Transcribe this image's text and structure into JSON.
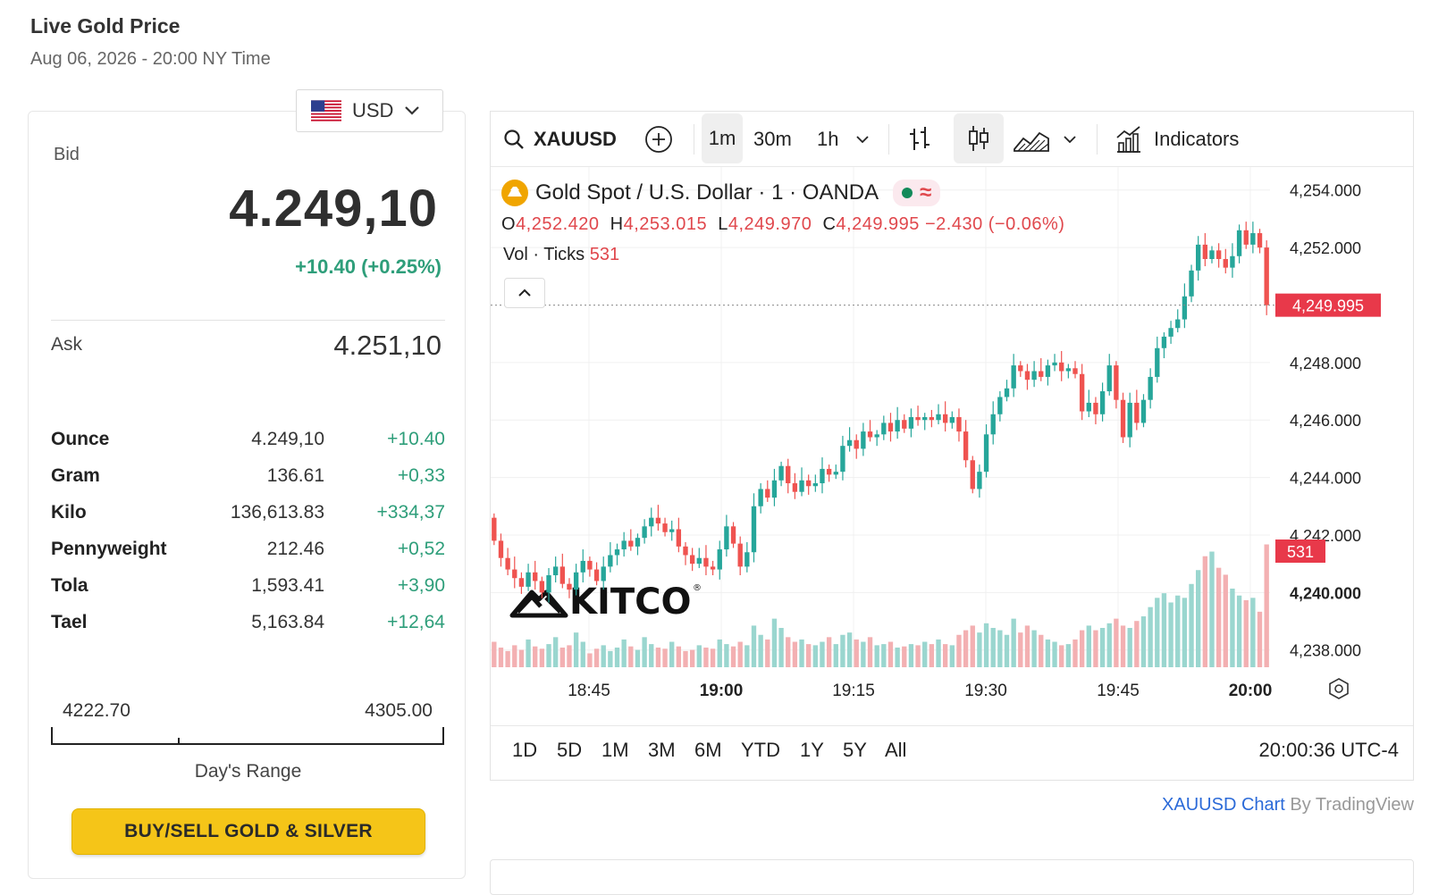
{
  "header": {
    "title": "Live Gold Price",
    "subtitle": "Aug 06, 2026 - 20:00 NY Time"
  },
  "quote": {
    "currency": "USD",
    "bid_label": "Bid",
    "bid": "4.249,10",
    "change": "+10.40 (+0.25%)",
    "ask_label": "Ask",
    "ask": "4.251,10",
    "units": [
      {
        "unit": "Ounce",
        "price": "4.249,10",
        "change": "+10.40"
      },
      {
        "unit": "Gram",
        "price": "136.61",
        "change": "+0,33"
      },
      {
        "unit": "Kilo",
        "price": "136,613.83",
        "change": "+334,37"
      },
      {
        "unit": "Pennyweight",
        "price": "212.46",
        "change": "+0,52"
      },
      {
        "unit": "Tola",
        "price": "1,593.41",
        "change": "+3,90"
      },
      {
        "unit": "Tael",
        "price": "5,163.84",
        "change": "+12,64"
      }
    ],
    "day_range": {
      "low": "4222.70",
      "high": "4305.00",
      "label": "Day's Range",
      "position": 0.32
    },
    "cta": "BUY/SELL GOLD & SILVER"
  },
  "toolbar": {
    "symbol": "XAUUSD",
    "intervals": [
      "1m",
      "30m",
      "1h"
    ],
    "active_interval": "1m",
    "indicators_label": "Indicators",
    "icons": [
      "search-icon",
      "add-symbol-icon",
      "chevron-down-icon",
      "bar-style-icon",
      "candle-style-icon",
      "area-style-icon",
      "chevron-down-icon",
      "indicators-icon"
    ]
  },
  "legend": {
    "title": "Gold Spot / U.S. Dollar · 1 · OANDA",
    "open_label": "O",
    "open": "4,252.420",
    "high_label": "H",
    "high": "4,253.015",
    "low_label": "L",
    "low": "4,249.970",
    "close_label": "C",
    "close": "4,249.995",
    "change": "−2.430 (−0.06%)",
    "vol_label": "Vol · Ticks",
    "vol_value": "531",
    "watermark": "KITCO"
  },
  "range_tabs": [
    "1D",
    "5D",
    "1M",
    "3M",
    "6M",
    "YTD",
    "1Y",
    "5Y",
    "All"
  ],
  "clock": "20:00:36 UTC-4",
  "attribution": {
    "link": "XAUUSD Chart",
    "suffix": " By TradingView"
  },
  "colors": {
    "up": "#26a69a",
    "down": "#ef5350",
    "accent": "#f5c518",
    "positive_text": "#2e9e7a",
    "price_tag": "#e8394a"
  },
  "chart_data": {
    "type": "candlestick",
    "interval": "1m",
    "symbol": "XAUUSD",
    "ylim": [
      4237.4,
      4254.8
    ],
    "y_ticks": [
      "4,254.000",
      "4,252.000",
      "4,248.000",
      "4,246.000",
      "4,244.000",
      "4,242.000",
      "4,240.000",
      "4,238.000"
    ],
    "x_ticks": [
      "18:45",
      "19:00",
      "19:15",
      "19:30",
      "19:45",
      "20:00"
    ],
    "bold_x_ticks": [
      "19:00",
      "20:00"
    ],
    "current_price_label": "4,249.995",
    "current_volume_label": "531",
    "close": [
      4241.8,
      4241.2,
      4240.8,
      4240.5,
      4240.2,
      4240.7,
      4240.4,
      4240.0,
      4240.6,
      4240.9,
      4240.3,
      4240.1,
      4240.7,
      4241.1,
      4240.8,
      4240.4,
      4240.9,
      4241.3,
      4241.5,
      4241.8,
      4241.6,
      4241.9,
      4242.3,
      4242.6,
      4242.4,
      4242.1,
      4242.2,
      4241.6,
      4241.3,
      4241.0,
      4241.2,
      4240.9,
      4240.8,
      4241.5,
      4242.3,
      4241.7,
      4240.9,
      4241.4,
      4243.0,
      4243.6,
      4243.3,
      4243.9,
      4244.4,
      4243.8,
      4243.5,
      4243.9,
      4243.7,
      4243.8,
      4244.3,
      4244.1,
      4244.2,
      4245.1,
      4245.3,
      4245.0,
      4245.6,
      4245.4,
      4245.5,
      4245.9,
      4245.6,
      4246.0,
      4245.7,
      4246.1,
      4246.0,
      4246.1,
      4246.0,
      4246.2,
      4245.9,
      4246.1,
      4245.6,
      4244.6,
      4243.6,
      4244.2,
      4245.5,
      4246.2,
      4246.8,
      4247.1,
      4247.9,
      4247.7,
      4247.4,
      4247.7,
      4247.5,
      4247.9,
      4248.0,
      4247.7,
      4247.8,
      4247.6,
      4246.3,
      4246.6,
      4246.2,
      4247.0,
      4247.9,
      4246.7,
      4245.4,
      4246.6,
      4245.9,
      4246.7,
      4247.5,
      4248.5,
      4248.9,
      4249.2,
      4249.5,
      4250.3,
      4251.2,
      4252.1,
      4251.6,
      4251.9,
      4251.6,
      4251.3,
      4251.7,
      4252.6,
      4252.1,
      4252.5,
      4252.0,
      4249.995
    ],
    "volume": [
      110,
      85,
      70,
      95,
      75,
      120,
      90,
      80,
      100,
      130,
      85,
      95,
      150,
      110,
      60,
      80,
      95,
      70,
      85,
      120,
      90,
      75,
      130,
      100,
      85,
      80,
      110,
      90,
      70,
      75,
      95,
      85,
      80,
      120,
      100,
      90,
      110,
      95,
      180,
      140,
      120,
      210,
      170,
      130,
      110,
      120,
      100,
      95,
      110,
      130,
      100,
      140,
      150,
      120,
      110,
      130,
      95,
      100,
      110,
      85,
      90,
      100,
      95,
      110,
      100,
      120,
      100,
      95,
      140,
      160,
      180,
      150,
      190,
      170,
      160,
      140,
      210,
      150,
      180,
      160,
      140,
      120,
      110,
      95,
      100,
      120,
      160,
      180,
      160,
      170,
      190,
      210,
      180,
      170,
      200,
      220,
      260,
      300,
      320,
      280,
      310,
      300,
      360,
      420,
      480,
      500,
      430,
      400,
      340,
      310,
      290,
      300,
      240,
      531
    ]
  }
}
